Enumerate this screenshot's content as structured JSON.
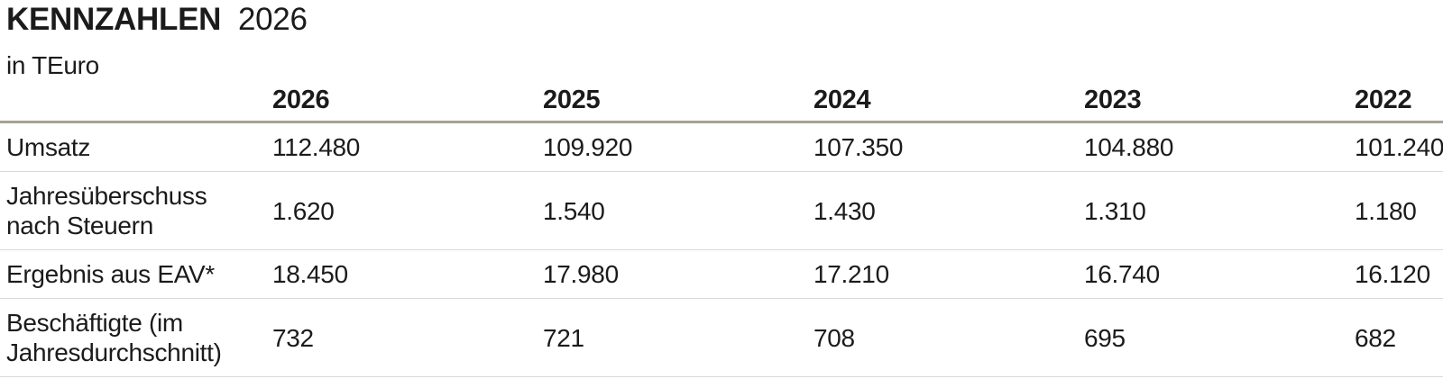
{
  "header": {
    "title_main": "KENNZAHLEN",
    "title_year": "2026",
    "subtitle": "in TEuro"
  },
  "table": {
    "columns": [
      "2026",
      "2025",
      "2024",
      "2023",
      "2022"
    ],
    "rows": [
      {
        "label": "Umsatz",
        "values": [
          "112.480",
          "109.920",
          "107.350",
          "104.880",
          "101.240"
        ]
      },
      {
        "label": "Jahresüberschuss nach Steuern",
        "values": [
          "1.620",
          "1.540",
          "1.430",
          "1.310",
          "1.180"
        ]
      },
      {
        "label": "Ergebnis aus EAV*",
        "values": [
          "18.450",
          "17.980",
          "17.210",
          "16.740",
          "16.120"
        ]
      },
      {
        "label": "Beschäftigte (im Jahresdurchschnitt)",
        "values": [
          "732",
          "721",
          "708",
          "695",
          "682"
        ]
      }
    ]
  },
  "colors": {
    "text": "#1b1b1b",
    "header_rule": "#a8a296",
    "row_rule": "#d9d9d9",
    "background": "#ffffff"
  }
}
